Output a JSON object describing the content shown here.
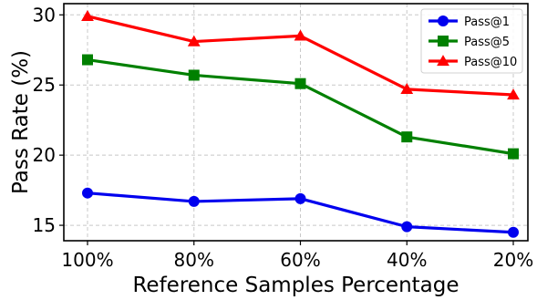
{
  "chart_data": {
    "type": "line",
    "title": "",
    "xlabel": "Reference Samples Percentage",
    "ylabel": "Pass Rate (%)",
    "categories": [
      "100%",
      "80%",
      "60%",
      "40%",
      "20%"
    ],
    "ylim": [
      13.9,
      30.8
    ],
    "yticks": [
      15,
      20,
      25,
      30
    ],
    "grid": true,
    "legend_position": "top-right",
    "series": [
      {
        "name": "Pass@1",
        "values": [
          17.3,
          16.7,
          16.9,
          14.9,
          14.5
        ],
        "color": "#0000ee",
        "marker": "circle"
      },
      {
        "name": "Pass@5",
        "values": [
          26.8,
          25.7,
          25.1,
          21.3,
          20.1
        ],
        "color": "#008000",
        "marker": "square"
      },
      {
        "name": "Pass@10",
        "values": [
          29.9,
          28.1,
          28.5,
          24.7,
          24.3
        ],
        "color": "#ff0000",
        "marker": "triangle"
      }
    ]
  }
}
